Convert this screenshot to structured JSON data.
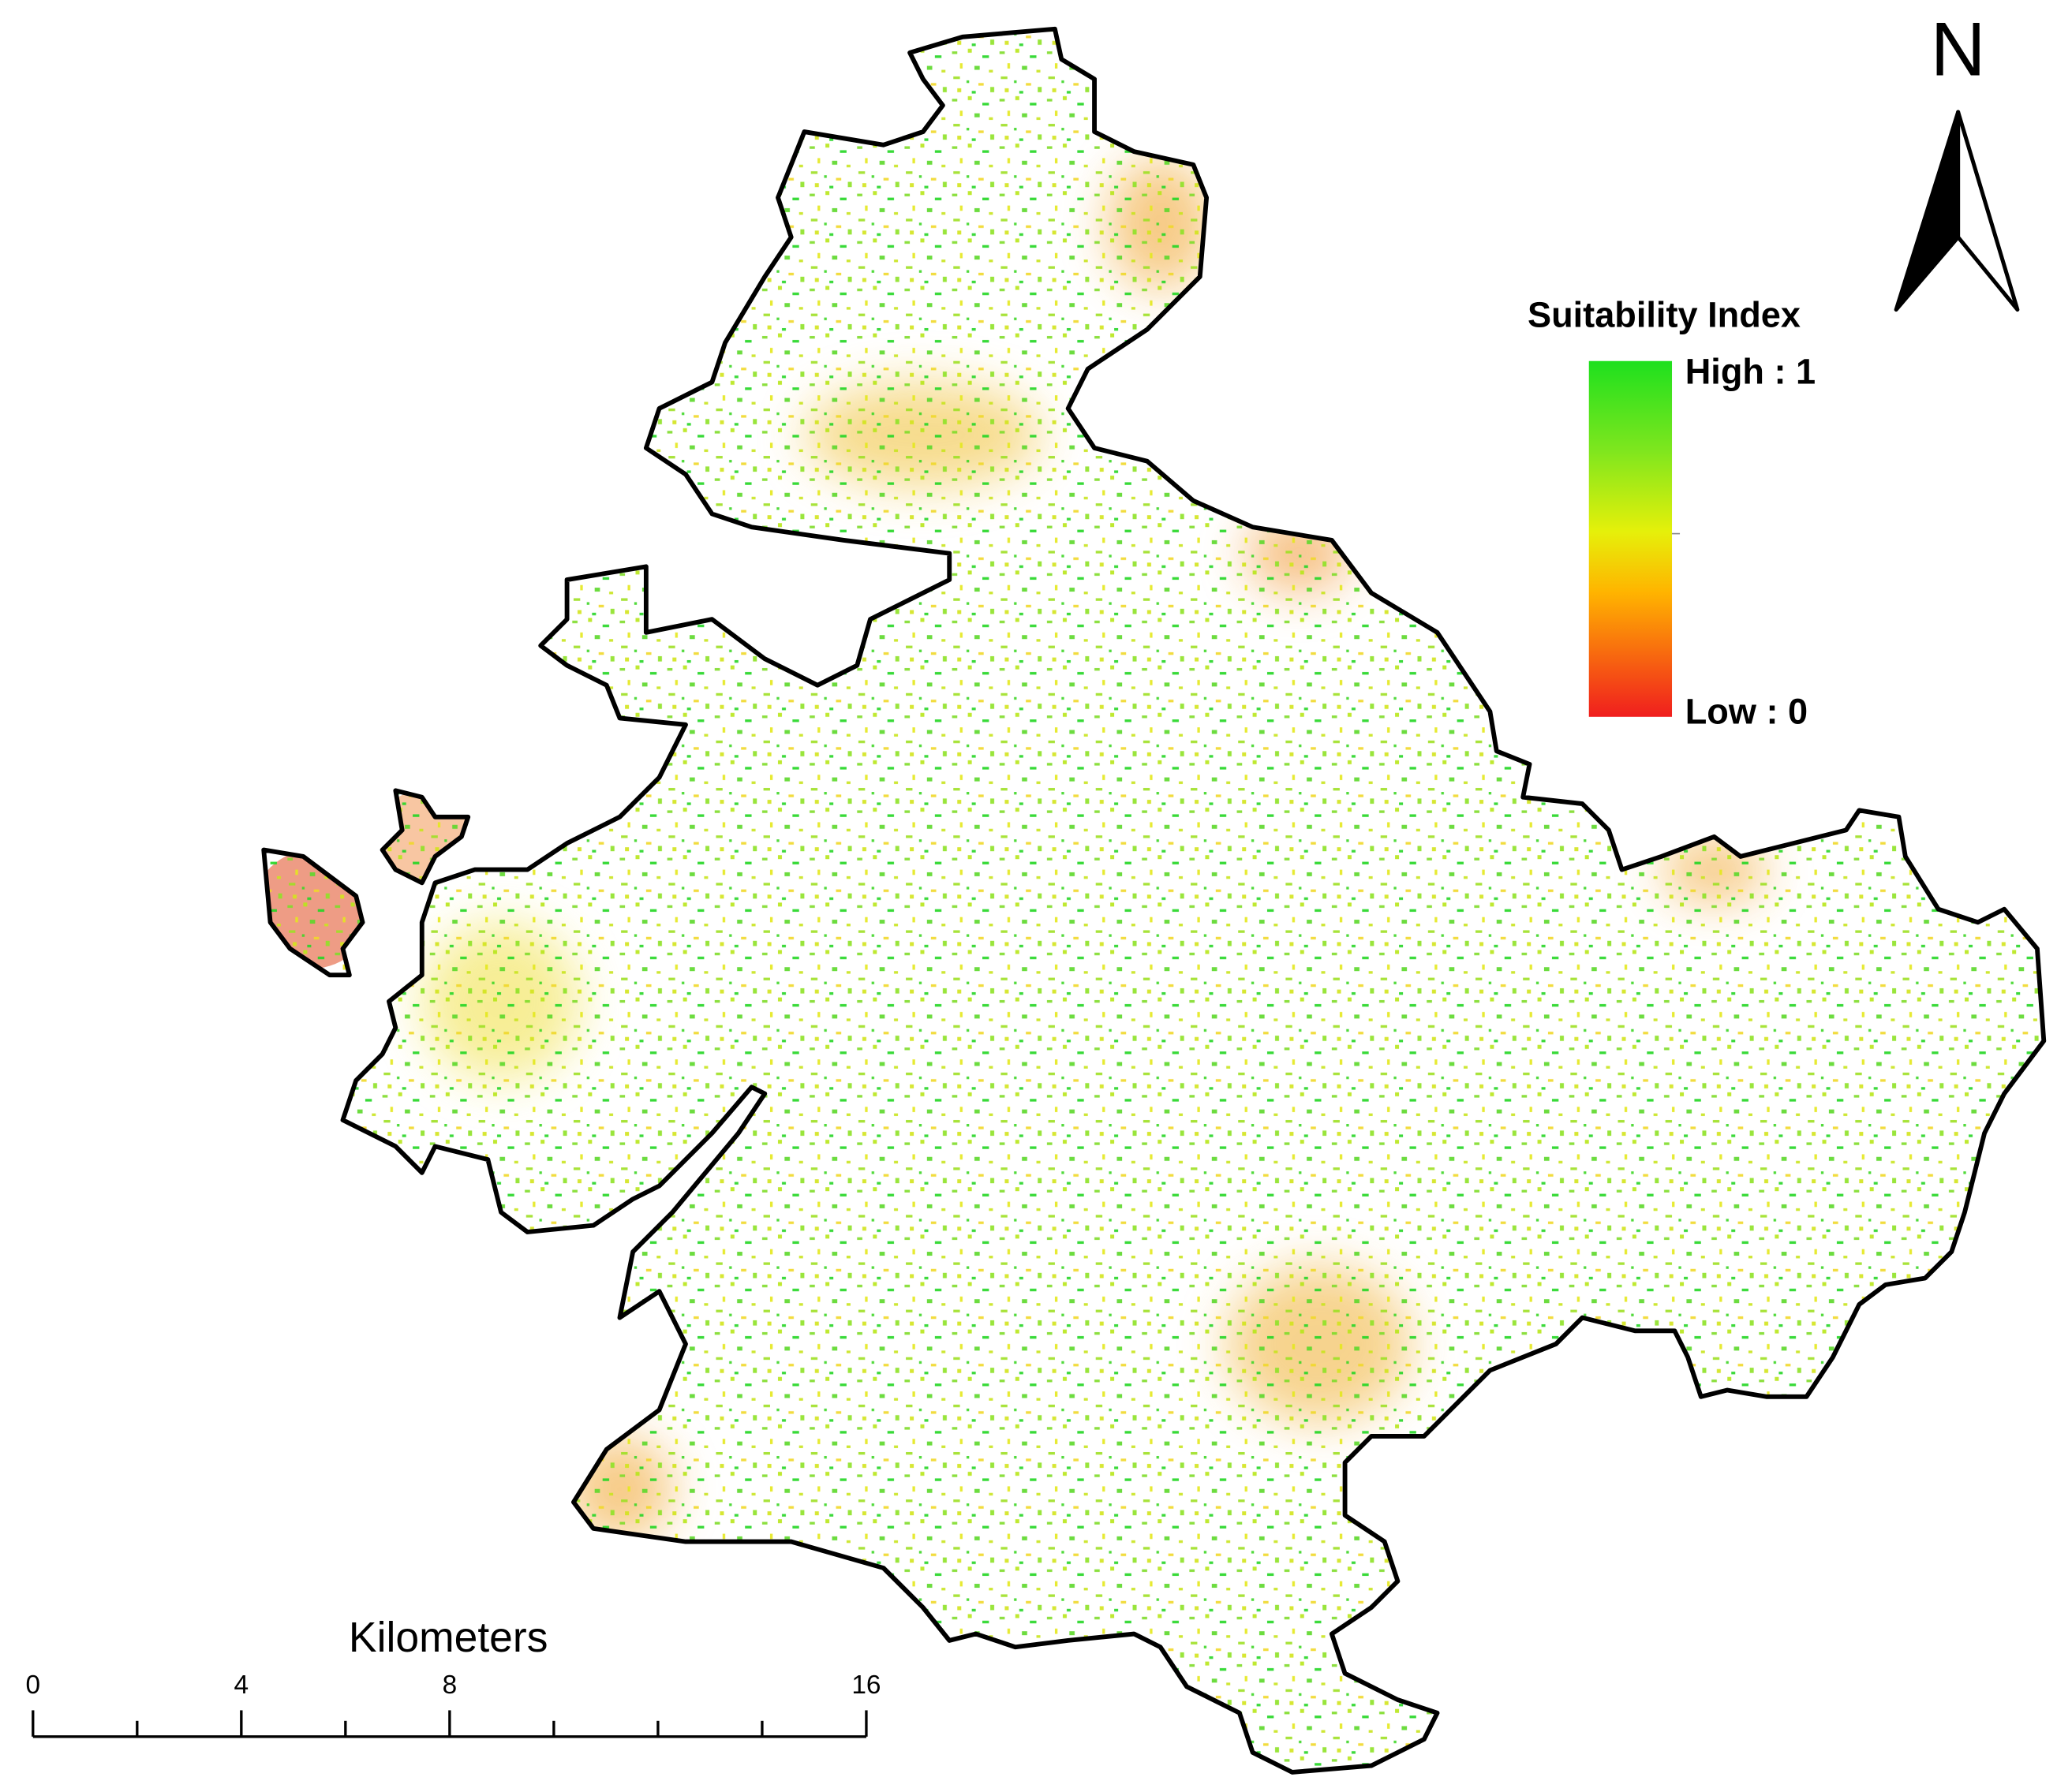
{
  "legend": {
    "title": "Suitability Index",
    "high_label": "High : 1",
    "low_label": "Low : 0"
  },
  "north_arrow": {
    "label": "N"
  },
  "scale_bar": {
    "unit": "Kilometers",
    "ticks": [
      0,
      4,
      8,
      16
    ]
  }
}
